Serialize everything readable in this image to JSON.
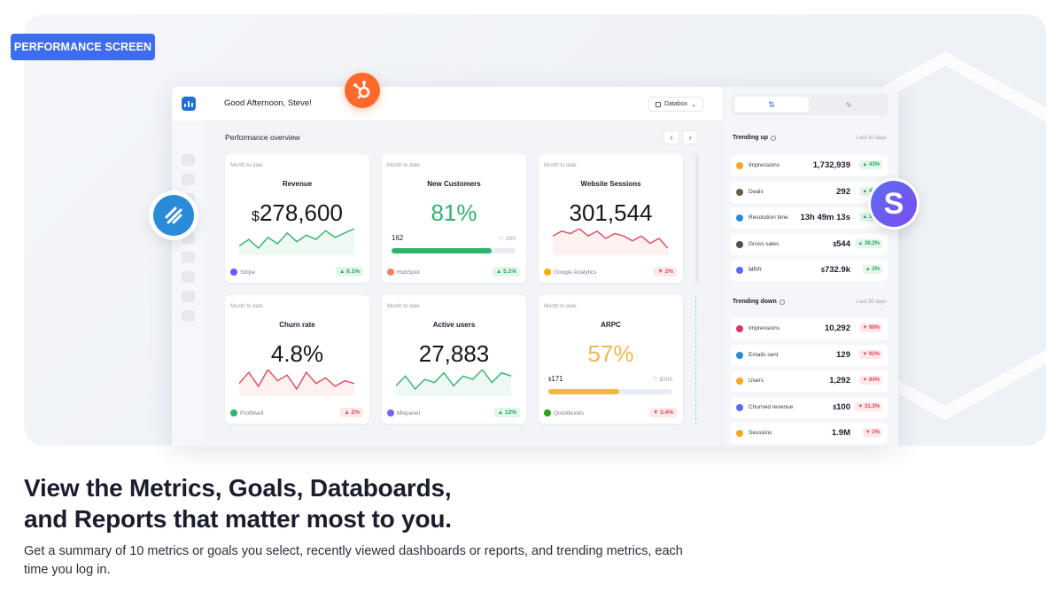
{
  "badge": "PERFORMANCE SCREEN",
  "app": {
    "greeting": "Good Afternoon, Steve!",
    "account_selector": "Databox",
    "section_title": "Performance overview",
    "cards": [
      {
        "period": "Month to date",
        "title": "Revenue",
        "value_prefix": "$",
        "value": "278,600",
        "source": "Stripe",
        "change": "▲ 6.1%",
        "trend": "up",
        "spark": [
          8,
          11,
          7,
          12,
          9,
          14,
          10,
          13,
          11,
          15,
          12,
          14,
          16
        ],
        "spark_color": "#2fb36b"
      },
      {
        "period": "Month to date",
        "title": "New Customers",
        "value": "81%",
        "value_color": "#2fb36b",
        "progress_current": "162",
        "progress_goal": "200",
        "progress": 0.81,
        "progress_color": "#2fb36b",
        "source": "HubSpot",
        "change": "▲ 5.1%",
        "trend": "up"
      },
      {
        "period": "Month to date",
        "title": "Website Sessions",
        "value": "301,544",
        "source": "Google Analytics",
        "change": "▼ 2%",
        "trend": "down",
        "spark": [
          12,
          14,
          13,
          15,
          12,
          14,
          11,
          13,
          12,
          10,
          12,
          9,
          11,
          7
        ],
        "spark_color": "#e04a5a"
      },
      {
        "period": "Month to date",
        "title": "Churn rate",
        "value": "4.8%",
        "source": "Profitwell",
        "change": "▲ 2%",
        "trend": "down",
        "spark": [
          10,
          14,
          9,
          15,
          11,
          13,
          8,
          14,
          10,
          12,
          9,
          11,
          10
        ],
        "spark_color": "#e04a5a"
      },
      {
        "period": "Month to date",
        "title": "Active users",
        "value": "27,883",
        "source": "Mixpanel",
        "change": "▲ 12%",
        "trend": "up",
        "spark": [
          9,
          12,
          8,
          11,
          10,
          13,
          9,
          12,
          11,
          14,
          10,
          13,
          12
        ],
        "spark_color": "#2fb36b"
      },
      {
        "period": "Month to date",
        "title": "ARPC",
        "value": "57%",
        "value_color": "#f0b84a",
        "progress_current_prefix": "$",
        "progress_current": "171",
        "progress_goal": "$300",
        "progress": 0.57,
        "progress_color": "#f0b84a",
        "source": "Quickbooks",
        "change": "▼ 3.4%",
        "trend": "down"
      }
    ]
  },
  "panel": {
    "tab_trending": "⇅",
    "tab_activity": "∿",
    "trending_up_title": "Trending up",
    "trending_down_title": "Trending down",
    "period": "Last 30 days",
    "trending_up": [
      {
        "name": "Impressions",
        "value": "1,732,939",
        "change": "▲ 43%",
        "icon_color": "#f5a623"
      },
      {
        "name": "Deals",
        "value": "292",
        "change": "▲ 41%",
        "icon_color": "#6b5b4b"
      },
      {
        "name": "Resolution time",
        "value": "13h 49m 13s",
        "change": "▲ 39%",
        "icon_color": "#2a8cd8"
      },
      {
        "name": "Gross sales",
        "value_prefix": "$",
        "value": "544",
        "change": "▲ 38.2%",
        "icon_color": "#4a4f5c"
      },
      {
        "name": "MRR",
        "value_prefix": "$",
        "value": "732.9k",
        "change": "▲ 2%",
        "icon_color": "#5b6cf2"
      }
    ],
    "trending_down": [
      {
        "name": "Impressions",
        "value": "10,292",
        "change": "▼ 98%",
        "icon_color": "#e1306c"
      },
      {
        "name": "Emails sent",
        "value": "129",
        "change": "▼ 92%",
        "icon_color": "#2a8cd8"
      },
      {
        "name": "Users",
        "value": "1,292",
        "change": "▼ 84%",
        "icon_color": "#f5a623"
      },
      {
        "name": "Churned revenue",
        "value_prefix": "$",
        "value": "100",
        "change": "▼ 31.3%",
        "icon_color": "#5b6cf2"
      },
      {
        "name": "Sessions",
        "value": "1.9M",
        "change": "▼ 2%",
        "icon_color": "#f5a623"
      }
    ]
  },
  "floating": {
    "s_letter": "S"
  },
  "headline": {
    "line1": "View the Metrics, Goals, Databoards,",
    "line2": "and Reports that matter most to you."
  },
  "description": "Get a summary of 10 metrics or goals you select, recently viewed dashboards or reports, and trending metrics, each time you log in."
}
